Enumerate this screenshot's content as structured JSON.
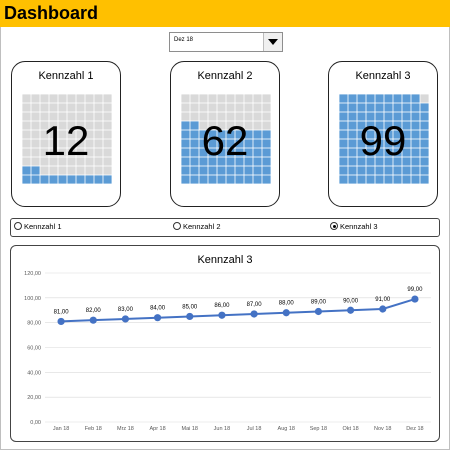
{
  "header": {
    "title": "Dashboard",
    "bar_color": "#ffc000"
  },
  "dropdown": {
    "value": "Dez 18",
    "icon": "chevron-down-icon"
  },
  "cards": [
    {
      "title": "Kennzahl  1",
      "value": "12",
      "fill_percent": 12
    },
    {
      "title": "Kennzahl  2",
      "value": "62",
      "fill_percent": 62
    },
    {
      "title": "Kennzahl  3",
      "value": "99",
      "fill_percent": 99
    }
  ],
  "radio_options": [
    {
      "label": "Kennzahl 1",
      "selected": false
    },
    {
      "label": "Kennzahl 2",
      "selected": false
    },
    {
      "label": "Kennzahl 3",
      "selected": true
    }
  ],
  "colors": {
    "fill": "#5b9bd5",
    "empty": "#d9d9d9",
    "line": "#4472c4"
  },
  "chart_data": {
    "type": "line",
    "title": "Kennzahl  3",
    "categories": [
      "Jan 18",
      "Feb 18",
      "Mrz 18",
      "Apr 18",
      "Mai 18",
      "Jun 18",
      "Jul 18",
      "Aug 18",
      "Sep 18",
      "Okt 18",
      "Nov 18",
      "Dez 18"
    ],
    "values": [
      81,
      82,
      83,
      84,
      85,
      86,
      87,
      88,
      89,
      90,
      91,
      99
    ],
    "data_labels": [
      "81,00",
      "82,00",
      "83,00",
      "84,00",
      "85,00",
      "86,00",
      "87,00",
      "88,00",
      "89,00",
      "90,00",
      "91,00",
      "99,00"
    ],
    "y_ticks": [
      "0,00",
      "20,00",
      "40,00",
      "60,00",
      "80,00",
      "100,00",
      "120,00"
    ],
    "ylim": [
      0,
      120
    ],
    "grid": true,
    "legend": "none"
  }
}
